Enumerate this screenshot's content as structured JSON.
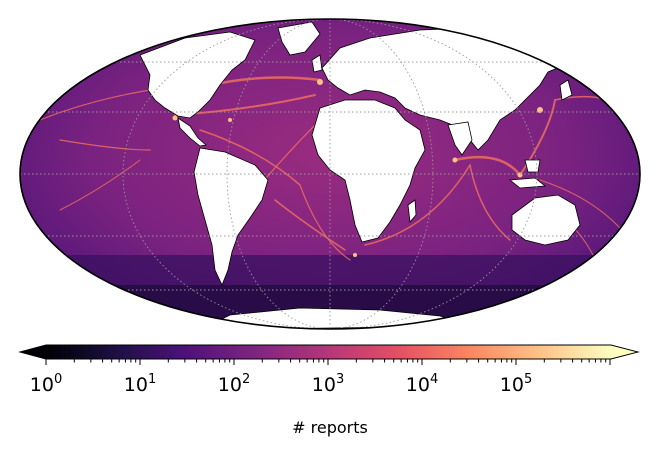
{
  "figure": {
    "projection": "mollweide",
    "colormap": "magma",
    "land_color": "#ffffff",
    "ocean_low_color": "#3b0f70",
    "ocean_mid_color": "#8c2981",
    "route_high_color": "#fe9f6d",
    "graticule": true,
    "colorbar_scale": "log",
    "colorbar_extend": "both"
  },
  "colorbar": {
    "label": "# reports",
    "ticks": [
      {
        "base": "10",
        "exp": "0"
      },
      {
        "base": "10",
        "exp": "1"
      },
      {
        "base": "10",
        "exp": "2"
      },
      {
        "base": "10",
        "exp": "3"
      },
      {
        "base": "10",
        "exp": "4"
      },
      {
        "base": "10",
        "exp": "5"
      }
    ],
    "gradient": [
      "#000004",
      "#1c1044",
      "#4f127b",
      "#812581",
      "#b5367a",
      "#e55064",
      "#fb8761",
      "#fec287",
      "#fcfdbf"
    ]
  }
}
